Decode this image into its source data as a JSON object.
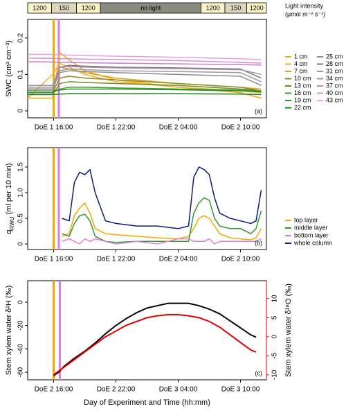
{
  "chart_data": [
    {
      "type": "line",
      "panel_label": "(a)",
      "ylabel": [
        {
          "text": "SWC (cm³ cm⁻³)"
        }
      ],
      "light_bar": {
        "title": "Light intensity",
        "units": "(μmol m⁻² s⁻¹)",
        "segments": [
          {
            "label": "1200",
            "start": 13.5,
            "end": 15.8,
            "color": "#fbf3c8"
          },
          {
            "label": "150",
            "start": 15.8,
            "end": 18.2,
            "color": "#dcd8bd"
          },
          {
            "label": "1200",
            "start": 18.2,
            "end": 20.5,
            "color": "#fbf3c8"
          },
          {
            "label": "no light",
            "start": 20.5,
            "end": 30.2,
            "color": "#8a8a80"
          },
          {
            "label": "1200",
            "start": 30.2,
            "end": 32.5,
            "color": "#fbf3c8"
          },
          {
            "label": "150",
            "start": 32.5,
            "end": 34.6,
            "color": "#dcd8bd"
          },
          {
            "label": "1200",
            "start": 34.6,
            "end": 36.5,
            "color": "#fbf3c8"
          }
        ]
      },
      "xlim": [
        13.5,
        36.5
      ],
      "xticks": [
        {
          "value": 16,
          "label": "DoE 1 16:00"
        },
        {
          "value": 22,
          "label": "DoE 1 22:00"
        },
        {
          "value": 28,
          "label": "DoE 2 04:00"
        },
        {
          "value": 34,
          "label": "DoE 2 10:00"
        }
      ],
      "ylim": [
        -0.019,
        0.251
      ],
      "yticks": [
        0,
        0.1,
        0.2
      ],
      "events": [
        {
          "value": 16.0,
          "color": "#f5a800"
        },
        {
          "value": 16.5,
          "color": "#e07ee0"
        }
      ],
      "legend": "right",
      "legend_columns": 2,
      "x": [
        13.5,
        15.9,
        16.6,
        17.5,
        19,
        22,
        28,
        34,
        36
      ],
      "series": [
        {
          "name": "1 cm",
          "color": "#f5a800",
          "values": [
            0.035,
            0.035,
            0.16,
            0.14,
            0.11,
            0.085,
            0.065,
            0.05,
            0.035
          ]
        },
        {
          "name": "4 cm",
          "color": "#f0b030",
          "values": [
            0.035,
            0.1,
            0.13,
            0.12,
            0.1,
            0.08,
            0.065,
            0.055,
            0.05
          ]
        },
        {
          "name": "7 cm",
          "color": "#e8a020",
          "values": [
            0.05,
            0.05,
            0.12,
            0.115,
            0.105,
            0.09,
            0.075,
            0.065,
            0.06
          ]
        },
        {
          "name": "10 cm",
          "color": "#8a8a20",
          "values": [
            0.05,
            0.05,
            0.09,
            0.095,
            0.09,
            0.085,
            0.075,
            0.065,
            0.055
          ]
        },
        {
          "name": "13 cm",
          "color": "#6b8e23",
          "values": [
            0.045,
            0.045,
            0.075,
            0.08,
            0.078,
            0.075,
            0.07,
            0.06,
            0.055
          ]
        },
        {
          "name": "16 cm",
          "color": "#3c9a2c",
          "values": [
            0.05,
            0.05,
            0.06,
            0.065,
            0.065,
            0.063,
            0.06,
            0.057,
            0.053
          ]
        },
        {
          "name": "19 cm",
          "color": "#2e8b2e",
          "values": [
            0.055,
            0.055,
            0.057,
            0.06,
            0.06,
            0.06,
            0.058,
            0.055,
            0.052
          ]
        },
        {
          "name": "22 cm",
          "color": "#1f7a1f",
          "values": [
            0.045,
            0.045,
            0.046,
            0.047,
            0.047,
            0.047,
            0.047,
            0.046,
            0.045
          ]
        },
        {
          "name": "25 cm",
          "color": "#8c8c8c",
          "values": [
            0.06,
            0.06,
            0.105,
            0.11,
            0.108,
            0.105,
            0.1,
            0.095,
            0.07
          ]
        },
        {
          "name": "28 cm",
          "color": "#7a7a7a",
          "values": [
            0.06,
            0.06,
            0.12,
            0.125,
            0.123,
            0.12,
            0.118,
            0.115,
            0.09
          ]
        },
        {
          "name": "31 cm",
          "color": "#9a9a9a",
          "values": [
            0.065,
            0.065,
            0.11,
            0.115,
            0.113,
            0.11,
            0.108,
            0.105,
            0.08
          ]
        },
        {
          "name": "34 cm",
          "color": "#a88ca8",
          "values": [
            0.07,
            0.07,
            0.12,
            0.122,
            0.12,
            0.118,
            0.116,
            0.113,
            0.1
          ]
        },
        {
          "name": "37 cm",
          "color": "#c77fc7",
          "values": [
            0.135,
            0.134,
            0.133,
            0.133,
            0.132,
            0.131,
            0.129,
            0.127,
            0.126
          ]
        },
        {
          "name": "40 cm",
          "color": "#d890d8",
          "values": [
            0.145,
            0.144,
            0.143,
            0.143,
            0.142,
            0.141,
            0.138,
            0.133,
            0.131
          ]
        },
        {
          "name": "43 cm",
          "color": "#e4a0e4",
          "values": [
            0.155,
            0.155,
            0.154,
            0.153,
            0.152,
            0.15,
            0.147,
            0.143,
            0.14
          ]
        }
      ]
    },
    {
      "type": "line",
      "panel_label": "(b)",
      "ylabel": [
        {
          "text": "q"
        },
        {
          "text": "RWU",
          "subscript": true
        },
        {
          "text": " (ml per 10 min)"
        }
      ],
      "xlim": [
        13.5,
        36.5
      ],
      "xticks": [
        {
          "value": 16,
          "label": "DoE 1 16:00"
        },
        {
          "value": 22,
          "label": "DoE 1 22:00"
        },
        {
          "value": 28,
          "label": "DoE 2 04:00"
        },
        {
          "value": 34,
          "label": "DoE 2 10:00"
        }
      ],
      "ylim": [
        -0.108,
        1.878
      ],
      "yticks": [
        0,
        0.5,
        {
          "value": 1,
          "label": "1.0"
        },
        1.5
      ],
      "events": [
        {
          "value": 16.0,
          "color": "#f5a800"
        },
        {
          "value": 16.5,
          "color": "#e07ee0"
        }
      ],
      "legend": "right",
      "legend_columns": 1,
      "x": [
        16.8,
        17.5,
        18,
        18.5,
        19,
        19.5,
        20,
        21,
        22,
        24,
        26,
        28,
        29,
        29.5,
        30,
        30.5,
        31,
        31.5,
        32,
        33,
        34,
        35,
        35.5,
        36
      ],
      "series": [
        {
          "name": "top layer",
          "color": "#f5a800",
          "values": [
            0.15,
            0.2,
            0.55,
            0.7,
            0.8,
            0.6,
            0.3,
            0.2,
            0.18,
            0.15,
            0.12,
            0.1,
            0.15,
            0.3,
            0.5,
            0.55,
            0.5,
            0.35,
            0.2,
            0.12,
            0.1,
            0.08,
            0.12,
            0.3
          ]
        },
        {
          "name": "middle layer",
          "color": "#2e9a2e",
          "values": [
            0.2,
            0.15,
            0.4,
            0.55,
            0.58,
            0.45,
            0.15,
            0.05,
            0.03,
            0.05,
            0.05,
            0.05,
            0.05,
            0.6,
            0.8,
            0.9,
            0.85,
            0.5,
            0.35,
            0.3,
            0.3,
            0.2,
            0.3,
            0.65
          ]
        },
        {
          "name": "bottom layer",
          "color": "#e07ee0",
          "values": [
            0.05,
            0.1,
            0.05,
            0.0,
            0.1,
            0.05,
            0.1,
            0.05,
            0.0,
            0.05,
            0.0,
            0.1,
            0.1,
            0.05,
            0.05,
            0.05,
            0.1,
            0.0,
            0.05,
            0.05,
            0.05,
            0.05,
            0.05,
            0.1
          ]
        },
        {
          "name": "whole column",
          "color": "#0a1a80",
          "values": [
            0.5,
            0.45,
            1.2,
            1.4,
            1.35,
            1.45,
            1.0,
            0.45,
            0.4,
            0.35,
            0.35,
            0.3,
            0.35,
            1.3,
            1.5,
            1.45,
            1.35,
            0.9,
            0.6,
            0.5,
            0.45,
            0.4,
            0.45,
            1.05
          ]
        }
      ]
    },
    {
      "type": "line",
      "panel_label": "(c)",
      "xlabel": "Day of Experiment and Time (hh:mm)",
      "ylabel": [
        {
          "text": "Stem xylem water δ²H (‰)"
        }
      ],
      "y2label": "Stem xylem water δ¹⁸O (‰)",
      "y2color": "#e00000",
      "xlim": [
        13.5,
        36.5
      ],
      "xticks": [
        {
          "value": 16,
          "label": "DoE 2 16:00"
        },
        {
          "value": 22,
          "label": "DoE 2 22:00"
        },
        {
          "value": 28,
          "label": "DoE 3 04:00"
        },
        {
          "value": 34,
          "label": "DoE 3 10:00"
        }
      ],
      "ylim": [
        -66.5,
        18.4
      ],
      "yticks": [
        -60,
        -40,
        -20,
        0
      ],
      "y2lim": [
        -11.3,
        14.7
      ],
      "y2ticks": [
        -10,
        -5,
        0,
        5,
        10
      ],
      "events": [
        {
          "value": 16.0,
          "color": "#f5a800"
        },
        {
          "value": 16.6,
          "color": "#e07ee0"
        }
      ],
      "x": [
        16,
        16.5,
        17,
        18,
        19,
        20,
        21,
        22,
        23,
        24,
        25,
        26,
        27,
        28,
        29,
        30,
        31,
        32,
        33,
        34,
        35,
        35.5
      ],
      "series": [
        {
          "name": "δ²H",
          "color": "#000000",
          "values": [
            -63,
            -60,
            -55,
            -48,
            -42,
            -35,
            -27,
            -20,
            -14,
            -9,
            -5,
            -3,
            -1,
            -1,
            -1,
            -3,
            -6,
            -10,
            -16,
            -22,
            -28,
            -30
          ]
        },
        {
          "name": "δ¹⁸O",
          "color": "#e00000",
          "axis": "y2",
          "values": [
            -10,
            -9,
            -8,
            -6,
            -4,
            -2,
            0,
            1.5,
            3,
            4,
            5,
            5.5,
            5.8,
            5.8,
            5.5,
            5,
            4,
            2.5,
            0.5,
            -1.5,
            -3.5,
            -4
          ]
        }
      ]
    }
  ]
}
